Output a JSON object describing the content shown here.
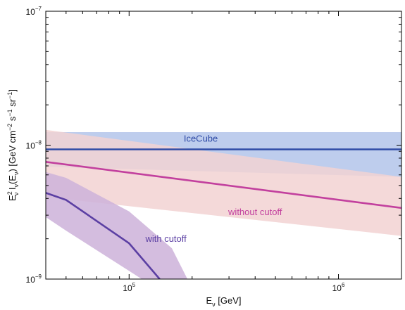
{
  "chart_data": {
    "type": "line",
    "title": "",
    "xlabel": {
      "base": "E",
      "sub": "ν",
      "unit": " [GeV]"
    },
    "ylabel": {
      "p1": "E",
      "p1_sup": "2",
      "p1_sub": "ν",
      "p2": " I",
      "p2_sub": "ν",
      "p3": "(E",
      "p3_sub": "ν",
      "p4": ") [GeV cm",
      "p4_sup": "−2",
      "p5": " s",
      "p5_sup": "−1",
      "p6": " sr",
      "p6_sup": "−1",
      "p7": "]"
    },
    "x_scale": "log",
    "y_scale": "log",
    "xlim": [
      40000,
      2000000
    ],
    "ylim": [
      1e-09,
      1e-07
    ],
    "x_ticks": [
      {
        "value": 100000,
        "base": "10",
        "exp": "5"
      },
      {
        "value": 1000000,
        "base": "10",
        "exp": "6"
      }
    ],
    "y_ticks": [
      {
        "value": 1e-09,
        "base": "10",
        "exp": "−9"
      },
      {
        "value": 1e-08,
        "base": "10",
        "exp": "−8"
      },
      {
        "value": 1e-07,
        "base": "10",
        "exp": "−7"
      }
    ],
    "grid": false,
    "series": [
      {
        "name": "IceCube",
        "color": "#2f4ba6",
        "band_color": "#b3c4ea",
        "line": {
          "x": [
            40000,
            2000000
          ],
          "y": [
            9.3e-09,
            9.3e-09
          ]
        },
        "band": {
          "x": [
            40000,
            2000000
          ],
          "upper": [
            1.25e-08,
            1.25e-08
          ],
          "lower": [
            6.9e-09,
            5.8e-09
          ]
        },
        "label_pos": {
          "x": 220000,
          "y": 1.06e-08
        }
      },
      {
        "name": "without cutoff",
        "color": "#c2409e",
        "band_color": "#f2d2d2",
        "line": {
          "x": [
            40000,
            2000000
          ],
          "y": [
            7.5e-09,
            3.4e-09
          ]
        },
        "band": {
          "x": [
            40000,
            2000000
          ],
          "upper": [
            1.3e-08,
            5.8e-09
          ],
          "lower": [
            4.1e-09,
            2.1e-09
          ]
        },
        "label_pos": {
          "x": 400000,
          "y": 3e-09
        }
      },
      {
        "name": "with cutoff",
        "color": "#5b3fa3",
        "band_color": "#cdb1d9",
        "line": {
          "x": [
            40000,
            50000,
            100000,
            140000
          ],
          "y": [
            4.4e-09,
            3.9e-09,
            1.85e-09,
            1e-09
          ]
        },
        "band": {
          "upper_x": [
            40000,
            50000,
            100000,
            160000,
            190000
          ],
          "upper_y": [
            6.3e-09,
            5.7e-09,
            3.2e-09,
            1.7e-09,
            1e-09
          ],
          "lower_x": [
            40000,
            50000,
            100000,
            115000
          ],
          "lower_y": [
            2.9e-09,
            2.3e-09,
            1.15e-09,
            1e-09
          ]
        },
        "label_pos": {
          "x": 150000,
          "y": 1.9e-09
        }
      }
    ]
  }
}
